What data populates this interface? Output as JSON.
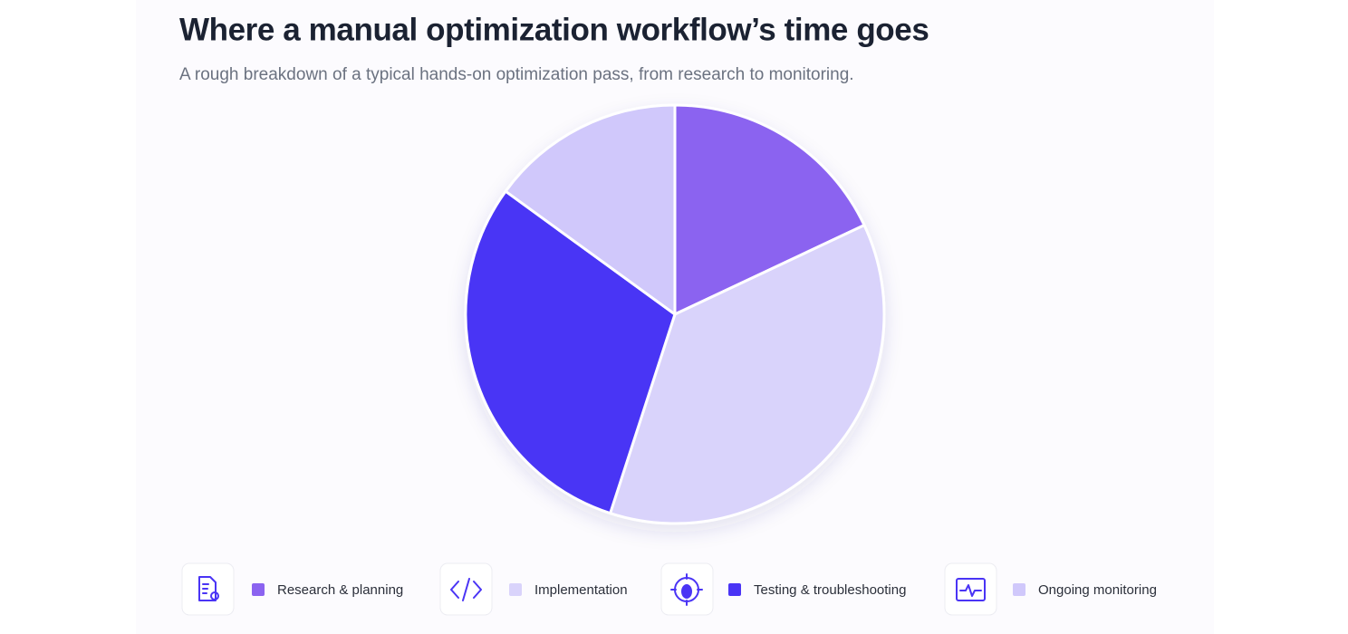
{
  "chart_data": {
    "type": "pie",
    "title": "Where a manual optimization workflow’s time goes",
    "subtitle": "A rough breakdown of a typical hands-on optimization pass, from research to monitoring.",
    "categories": [
      "Research & planning",
      "Implementation",
      "Testing & troubleshooting",
      "Ongoing monitoring"
    ],
    "values": [
      18,
      37,
      30,
      15
    ],
    "colors": [
      "#8b63f0",
      "#d9d3fb",
      "#4a34f5",
      "#d0c8fb"
    ]
  }
}
